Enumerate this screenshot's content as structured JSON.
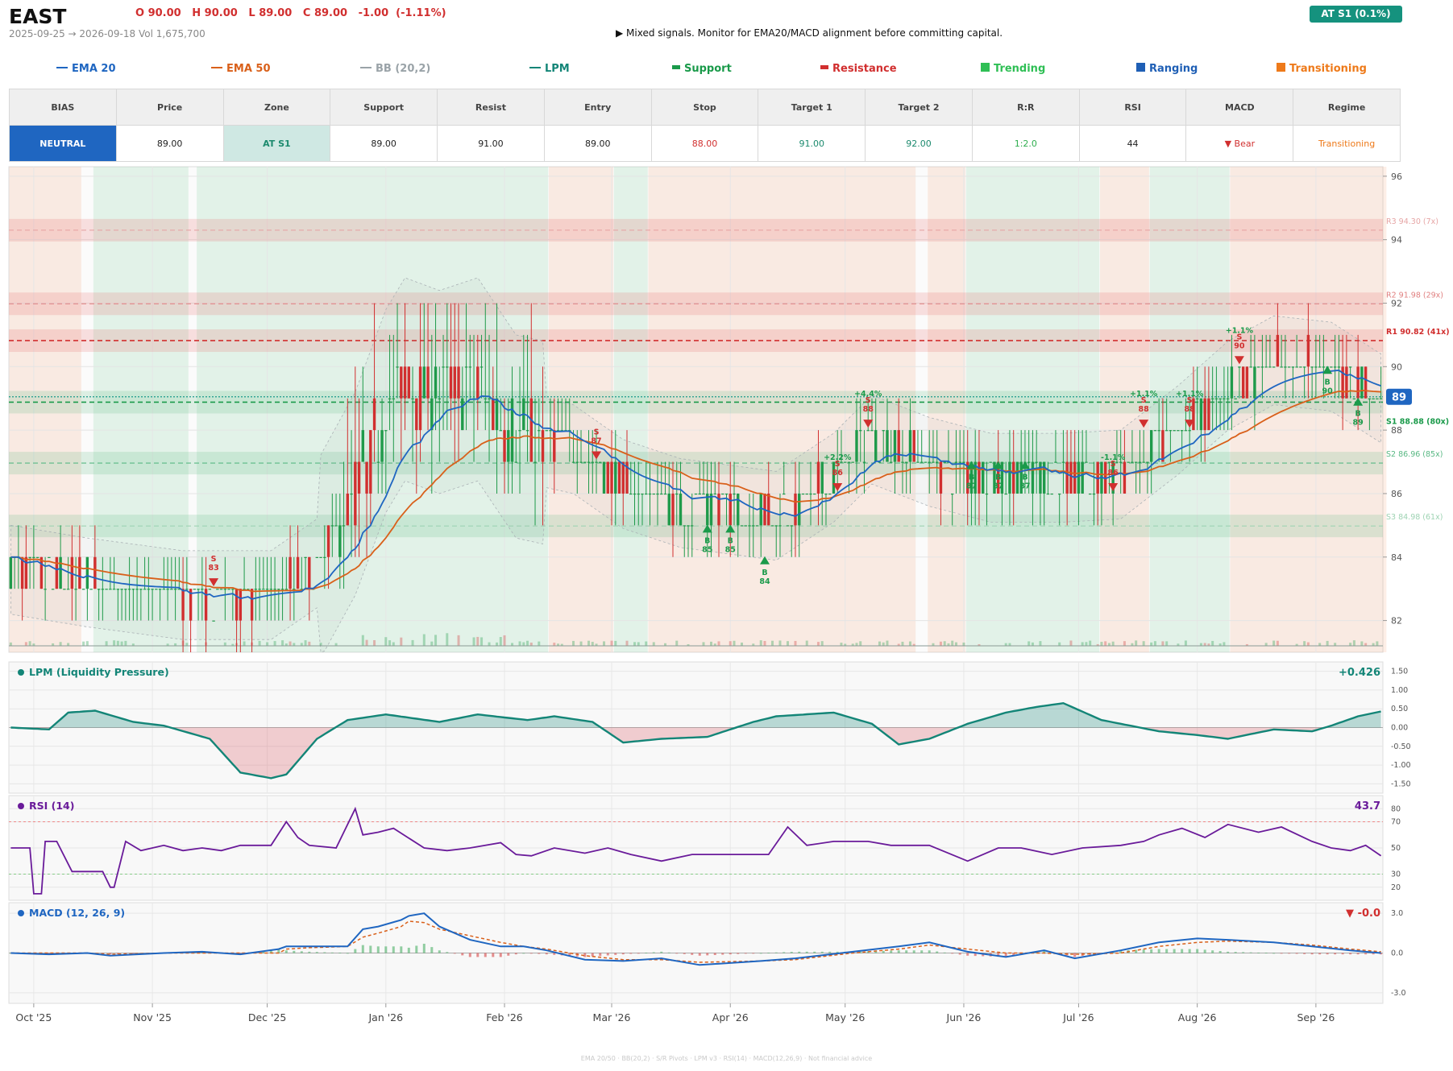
{
  "header": {
    "ticker": "EAST",
    "ohlc": "O 90.00   H 90.00   L 89.00   C 89.00   -1.00  (-1.11%)",
    "range": "2025-09-25 → 2026-09-18   Vol 1,675,700",
    "signal": "▶  Mixed signals. Monitor for EMA20/MACD alignment before committing capital.",
    "badge": "AT S1  (0.1%)"
  },
  "legend": [
    {
      "label": "EMA 20",
      "color": "#1f66c1",
      "kind": "line"
    },
    {
      "label": "EMA 50",
      "color": "#d9601a",
      "kind": "line"
    },
    {
      "label": "BB (20,2)",
      "color": "#9aa3a8",
      "kind": "line"
    },
    {
      "label": "LPM",
      "color": "#138577",
      "kind": "line"
    },
    {
      "label": "Support",
      "color": "#1a9a4a",
      "kind": "bar"
    },
    {
      "label": "Resistance",
      "color": "#d12f2f",
      "kind": "bar"
    },
    {
      "label": "Trending",
      "color": "#2fbf55",
      "kind": "sq"
    },
    {
      "label": "Ranging",
      "color": "#1f5fb5",
      "kind": "sq"
    },
    {
      "label": "Transitioning",
      "color": "#ee7a1a",
      "kind": "sq"
    }
  ],
  "stats": {
    "headers": [
      "BIAS",
      "Price",
      "Zone",
      "Support",
      "Resist",
      "Entry",
      "Stop",
      "Target 1",
      "Target 2",
      "R:R",
      "RSI",
      "MACD",
      "Regime"
    ],
    "values": [
      "NEUTRAL",
      "89.00",
      "AT S1",
      "89.00",
      "91.00",
      "89.00",
      "88.00",
      "91.00",
      "92.00",
      "1:2.0",
      "44",
      "▼ Bear",
      "Transitioning"
    ],
    "value_colors": [
      "#ffffff",
      "#222222",
      "#1c8a6e",
      "#222222",
      "#222222",
      "#222222",
      "#d12f2f",
      "#1c8a6e",
      "#1c8a6e",
      "#2fae4e",
      "#222222",
      "#d12f2f",
      "#ee7a1a"
    ],
    "value_bgs": [
      "#1f66c1",
      "#ffffff",
      "#cfe8e3",
      "#ffffff",
      "#ffffff",
      "#ffffff",
      "#ffffff",
      "#ffffff",
      "#ffffff",
      "#ffffff",
      "#ffffff",
      "#ffffff",
      "#ffffff"
    ]
  },
  "chart_data": [
    {
      "type": "candlestick",
      "title": "",
      "ylim": [
        81,
        96.3
      ],
      "yticks": [
        82,
        84,
        86,
        88,
        90,
        92,
        94,
        96
      ],
      "last_price": "89",
      "months": [
        "Oct '25",
        "Nov '25",
        "Dec '25",
        "Jan '26",
        "Feb '26",
        "Mar '26",
        "Apr '26",
        "May '26",
        "Jun '26",
        "Jul '26",
        "Aug '26",
        "Sep '26"
      ],
      "month_day_index": [
        6,
        37,
        67,
        98,
        129,
        157,
        188,
        218,
        249,
        279,
        310,
        341
      ],
      "n_days": 359,
      "levels": [
        {
          "label": "R3 94.30 (7x)",
          "value": 94.3,
          "color": "#e6a5a5",
          "style": "resistance"
        },
        {
          "label": "R2 91.98 (29x)",
          "value": 91.98,
          "color": "#e07f7f",
          "style": "resistance"
        },
        {
          "label": "R1 90.82 (41x)",
          "value": 90.82,
          "color": "#d12f2f",
          "style": "resistance"
        },
        {
          "label": "S1 88.88 (80x)",
          "value": 88.88,
          "color": "#1a9a4a",
          "style": "support"
        },
        {
          "label": "S2 86.96 (85x)",
          "value": 86.96,
          "color": "#58b883",
          "style": "support"
        },
        {
          "label": "S3 84.98 (61x)",
          "value": 84.98,
          "color": "#9ed3b3",
          "style": "support"
        }
      ],
      "regimes": [
        {
          "from": 0,
          "to": 18,
          "r": "transitioning"
        },
        {
          "from": 22,
          "to": 46,
          "r": "trending"
        },
        {
          "from": 49,
          "to": 140,
          "r": "trending"
        },
        {
          "from": 141,
          "to": 157,
          "r": "transitioning"
        },
        {
          "from": 158,
          "to": 166,
          "r": "trending"
        },
        {
          "from": 167,
          "to": 236,
          "r": "transitioning"
        },
        {
          "from": 240,
          "to": 249,
          "r": "transitioning"
        },
        {
          "from": 250,
          "to": 284,
          "r": "trending"
        },
        {
          "from": 285,
          "to": 297,
          "r": "transitioning"
        },
        {
          "from": 298,
          "to": 318,
          "r": "trending"
        },
        {
          "from": 319,
          "to": 359,
          "r": "transitioning"
        }
      ],
      "anchors": [
        [
          0,
          83.6
        ],
        [
          20,
          83.2
        ],
        [
          45,
          82.8
        ],
        [
          68,
          82.8
        ],
        [
          80,
          83.8
        ],
        [
          90,
          86.0
        ],
        [
          98,
          88.6
        ],
        [
          103,
          89.6
        ],
        [
          112,
          89.2
        ],
        [
          122,
          89.6
        ],
        [
          132,
          87.8
        ],
        [
          147,
          87.4
        ],
        [
          160,
          86.3
        ],
        [
          175,
          85.7
        ],
        [
          200,
          85.3
        ],
        [
          215,
          86.5
        ],
        [
          225,
          87.7
        ],
        [
          240,
          87.0
        ],
        [
          256,
          86.5
        ],
        [
          275,
          86.5
        ],
        [
          290,
          86.6
        ],
        [
          305,
          88.0
        ],
        [
          318,
          89.4
        ],
        [
          330,
          90.2
        ],
        [
          345,
          90.0
        ],
        [
          358,
          89.0
        ]
      ],
      "markers": [
        {
          "i": 53,
          "label": "S",
          "value": 83,
          "dir": "sell"
        },
        {
          "i": 153,
          "label": "S",
          "value": 87,
          "dir": "sell"
        },
        {
          "i": 182,
          "label": "B",
          "value": 85,
          "dir": "buy"
        },
        {
          "i": 188,
          "label": "B",
          "value": 85,
          "dir": "buy"
        },
        {
          "i": 197,
          "label": "B",
          "value": 84,
          "dir": "buy"
        },
        {
          "i": 216,
          "label": "S",
          "value": 86,
          "dir": "sell",
          "pct": "+2.2%"
        },
        {
          "i": 224,
          "label": "S",
          "value": 88,
          "dir": "sell",
          "pct": "+4.4%"
        },
        {
          "i": 251,
          "label": "B",
          "value": 87,
          "dir": "buy"
        },
        {
          "i": 258,
          "label": "B",
          "value": 87,
          "dir": "buy"
        },
        {
          "i": 265,
          "label": "B",
          "value": 87,
          "dir": "buy"
        },
        {
          "i": 288,
          "label": "S",
          "value": 86,
          "dir": "sell",
          "pct": "-1.1%"
        },
        {
          "i": 296,
          "label": "S",
          "value": 88,
          "dir": "sell",
          "pct": "+1.1%"
        },
        {
          "i": 308,
          "label": "S",
          "value": 88,
          "dir": "sell",
          "pct": "+1.1%"
        },
        {
          "i": 321,
          "label": "S",
          "value": 90,
          "dir": "sell",
          "pct": "+1.1%"
        },
        {
          "i": 344,
          "label": "B",
          "value": 90,
          "dir": "buy"
        },
        {
          "i": 352,
          "label": "B",
          "value": 89,
          "dir": "buy"
        }
      ]
    },
    {
      "type": "line",
      "title": "LPM (Liquidity Pressure)",
      "last_value": "+0.426",
      "color": "#138577",
      "ylim": [
        -1.75,
        1.75
      ],
      "yticks": [
        "1.50",
        "1.00",
        "0.50",
        "0.00",
        "-0.50",
        "-1.00",
        "-1.50"
      ],
      "ytick_values": [
        1.5,
        1.0,
        0.5,
        0.0,
        -0.5,
        -1.0,
        -1.5
      ],
      "x": [
        0,
        10,
        15,
        22,
        32,
        40,
        52,
        60,
        68,
        72,
        80,
        88,
        98,
        112,
        122,
        135,
        142,
        152,
        160,
        170,
        182,
        194,
        200,
        215,
        225,
        232,
        240,
        250,
        260,
        268,
        275,
        285,
        300,
        310,
        318,
        330,
        340,
        345,
        352,
        358
      ],
      "y": [
        0.0,
        -0.05,
        0.4,
        0.45,
        0.15,
        0.05,
        -0.3,
        -1.2,
        -1.35,
        -1.25,
        -0.3,
        0.2,
        0.35,
        0.15,
        0.35,
        0.2,
        0.3,
        0.15,
        -0.4,
        -0.3,
        -0.25,
        0.15,
        0.3,
        0.4,
        0.1,
        -0.45,
        -0.3,
        0.1,
        0.4,
        0.55,
        0.65,
        0.2,
        -0.1,
        -0.2,
        -0.3,
        -0.05,
        -0.1,
        0.05,
        0.3,
        0.43
      ]
    },
    {
      "type": "line",
      "title": "RSI (14)",
      "last_value": "43.7",
      "color": "#6a1b9a",
      "ylim": [
        10,
        90
      ],
      "yticks": [
        "80",
        "70",
        "50",
        "30",
        "20"
      ],
      "ytick_values": [
        80,
        70,
        50,
        30,
        20
      ],
      "reference": [
        70,
        30
      ],
      "x": [
        0,
        5,
        6,
        8,
        9,
        12,
        16,
        20,
        24,
        26,
        27,
        30,
        34,
        40,
        45,
        50,
        55,
        60,
        68,
        72,
        75,
        78,
        85,
        90,
        92,
        96,
        100,
        108,
        114,
        120,
        128,
        132,
        136,
        142,
        150,
        156,
        162,
        170,
        178,
        190,
        198,
        203,
        208,
        215,
        224,
        230,
        240,
        250,
        258,
        264,
        272,
        280,
        290,
        296,
        300,
        306,
        312,
        318,
        326,
        332,
        340,
        345,
        350,
        354,
        358
      ],
      "y": [
        50,
        50,
        15,
        15,
        55,
        55,
        32,
        32,
        32,
        20,
        20,
        55,
        48,
        52,
        48,
        50,
        48,
        52,
        52,
        70,
        58,
        52,
        50,
        80,
        60,
        62,
        65,
        50,
        48,
        50,
        54,
        45,
        44,
        50,
        46,
        50,
        45,
        40,
        45,
        45,
        45,
        66,
        52,
        55,
        55,
        52,
        52,
        40,
        50,
        50,
        45,
        50,
        52,
        55,
        60,
        65,
        58,
        68,
        62,
        66,
        55,
        50,
        48,
        52,
        44
      ]
    },
    {
      "type": "bar+line",
      "title": "MACD (12, 26, 9)",
      "last_value": "▼ -0.0",
      "ylim": [
        -3.8,
        3.8
      ],
      "yticks": [
        "3.0",
        "0.0",
        "-3.0"
      ],
      "ytick_values": [
        3.0,
        0.0,
        -3.0
      ],
      "macd_color": "#1f66c1",
      "signal_color": "#d9601a",
      "x": [
        0,
        10,
        20,
        26,
        40,
        50,
        60,
        70,
        72,
        78,
        88,
        92,
        96,
        102,
        104,
        108,
        112,
        120,
        128,
        134,
        140,
        150,
        160,
        170,
        180,
        196,
        205,
        220,
        232,
        240,
        250,
        260,
        270,
        278,
        290,
        300,
        310,
        318,
        330,
        340,
        350,
        358
      ],
      "macd": [
        0.0,
        -0.1,
        0.0,
        -0.2,
        0.0,
        0.1,
        -0.1,
        0.3,
        0.5,
        0.5,
        0.5,
        1.8,
        2.0,
        2.5,
        2.8,
        3.0,
        2.0,
        1.0,
        0.5,
        0.5,
        0.2,
        -0.5,
        -0.6,
        -0.4,
        -0.9,
        -0.6,
        -0.4,
        0.1,
        0.5,
        0.8,
        0.1,
        -0.3,
        0.2,
        -0.4,
        0.2,
        0.8,
        1.1,
        1.0,
        0.8,
        0.5,
        0.2,
        0.0
      ],
      "signal": [
        0.0,
        0.0,
        0.0,
        -0.1,
        0.0,
        0.0,
        0.0,
        0.0,
        0.3,
        0.4,
        0.5,
        1.2,
        1.5,
        2.0,
        2.4,
        2.3,
        1.8,
        1.3,
        0.8,
        0.5,
        0.3,
        -0.2,
        -0.5,
        -0.5,
        -0.7,
        -0.6,
        -0.5,
        0.0,
        0.3,
        0.6,
        0.3,
        0.0,
        0.0,
        -0.1,
        0.0,
        0.5,
        0.8,
        0.9,
        0.8,
        0.6,
        0.3,
        0.1
      ]
    }
  ],
  "footer": "EMA 20/50  ·  BB(20,2)  ·  S/R Pivots  ·  LPM v3  ·  RSI(14)  ·  MACD(12,26,9)  ·  Not financial advice"
}
